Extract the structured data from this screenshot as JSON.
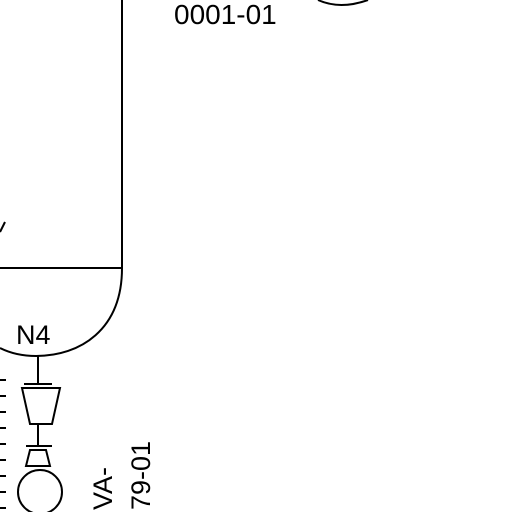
{
  "labels": {
    "tag_top": "0001-01",
    "nozzle": "N4",
    "tag_bottom_line1": "VA-",
    "tag_bottom_line2": "79-01"
  },
  "colors": {
    "line": "#000000",
    "background": "#ffffff"
  },
  "symbols": {
    "vessel": "vessel-shell-with-dished-head",
    "reducer": "reducer-symbol",
    "valve": "valve-symbol",
    "instrument_bubble": "instrument-bubble"
  }
}
